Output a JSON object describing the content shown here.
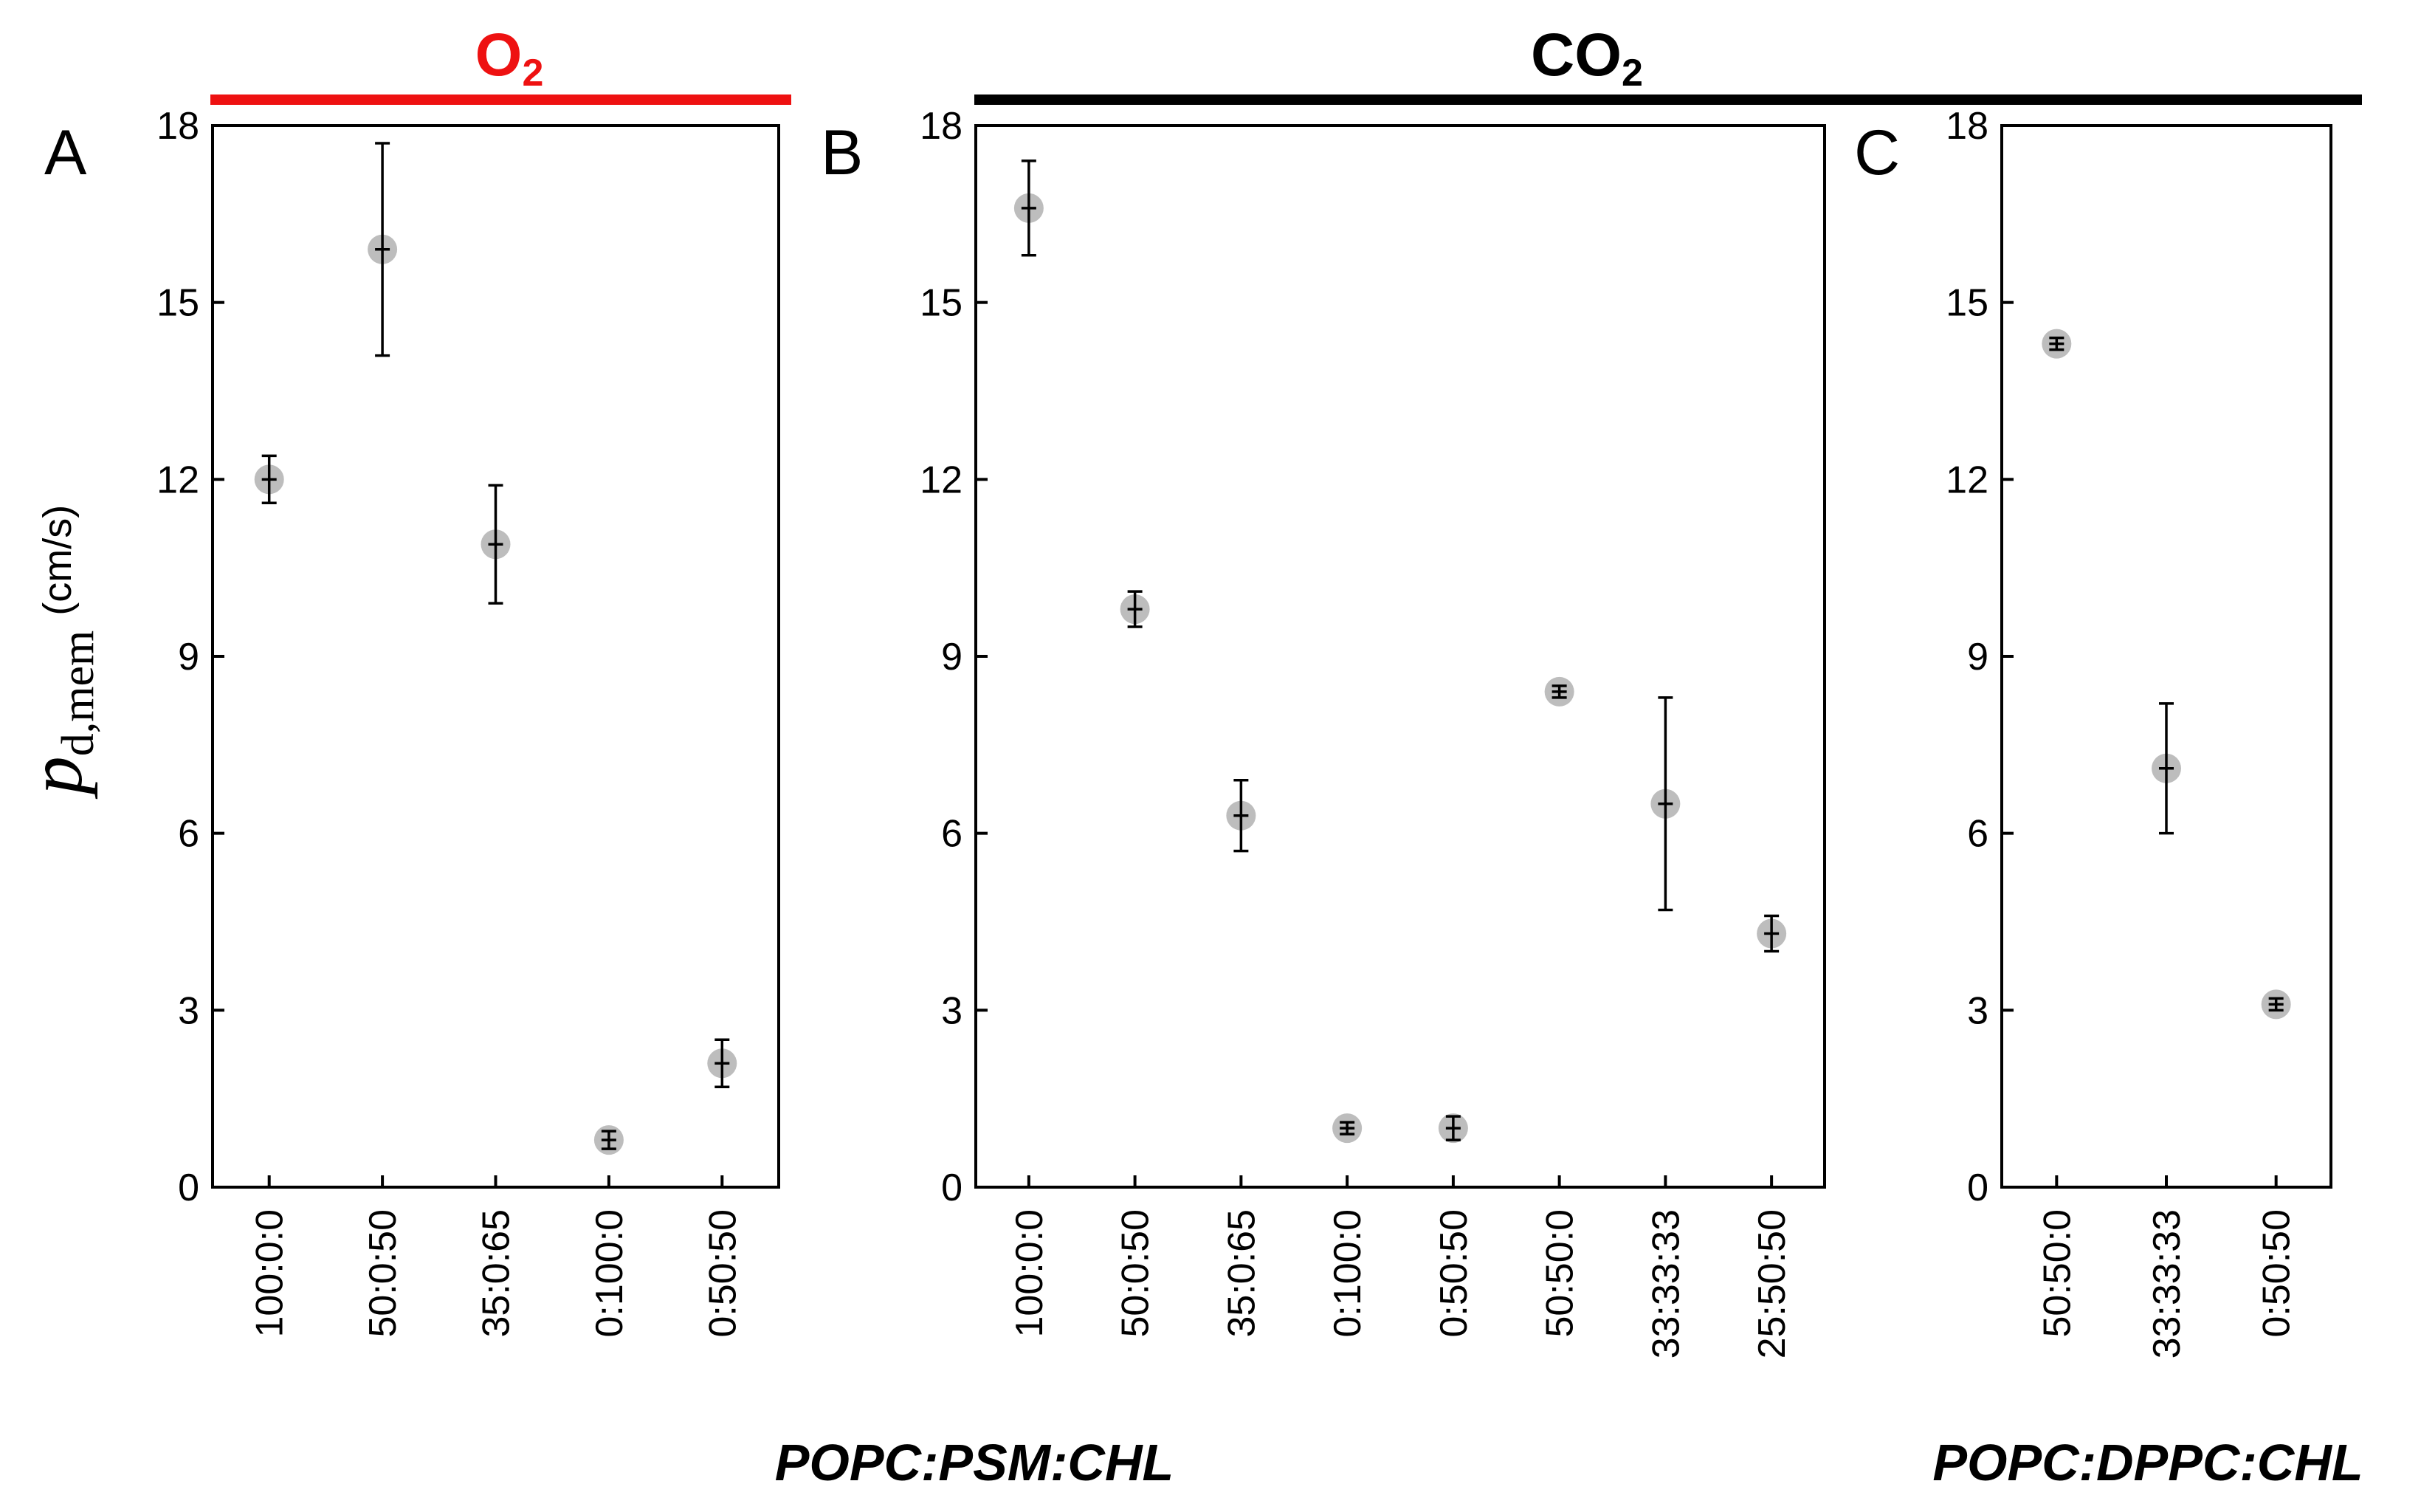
{
  "colors": {
    "o2": "#ee1111",
    "co2": "#000000",
    "marker": "#bdbdbd"
  },
  "header": {
    "o2": {
      "main": "O",
      "sub": "2"
    },
    "co2": {
      "main": "CO",
      "sub": "2"
    }
  },
  "ylabel": {
    "main": "p",
    "sub": "d,mem",
    "unit": "(cm/s)"
  },
  "group_labels": {
    "psm": "POPC:PSM:CHL",
    "dppc": "POPC:DPPC:CHL"
  },
  "chart_data": [
    {
      "type": "scatter",
      "panel": "A",
      "gas": "O2",
      "group": "POPC:PSM:CHL",
      "categories": [
        "100:0:0",
        "50:0:50",
        "35:0:65",
        "0:100:0",
        "0:50:50"
      ],
      "values": [
        12.0,
        15.9,
        10.9,
        0.8,
        2.1
      ],
      "errors": [
        0.4,
        1.8,
        1.0,
        0.15,
        0.4
      ],
      "ylim": [
        0,
        18
      ],
      "yticks": [
        "0",
        "3",
        "6",
        "9",
        "12",
        "15",
        "18"
      ],
      "ylabel": "p d,mem (cm/s)"
    },
    {
      "type": "scatter",
      "panel": "B",
      "gas": "CO2",
      "group": "POPC:PSM:CHL",
      "categories": [
        "100:0:0",
        "50:0:50",
        "35:0:65",
        "0:100:0",
        "0:50:50",
        "50:50:0",
        "33:33:33",
        "25:50:50"
      ],
      "values": [
        16.6,
        9.8,
        6.3,
        1.0,
        1.0,
        8.4,
        6.5,
        4.3
      ],
      "errors": [
        0.8,
        0.3,
        0.6,
        0.1,
        0.2,
        0.1,
        1.8,
        0.3
      ],
      "ylim": [
        0,
        18
      ],
      "yticks": [
        "0",
        "3",
        "6",
        "9",
        "12",
        "15",
        "18"
      ]
    },
    {
      "type": "scatter",
      "panel": "C",
      "gas": "CO2",
      "group": "POPC:DPPC:CHL",
      "categories": [
        "50:50:0",
        "33:33:33",
        "0:50:50"
      ],
      "values": [
        14.3,
        7.1,
        3.1
      ],
      "errors": [
        0.1,
        1.1,
        0.1
      ],
      "ylim": [
        0,
        18
      ],
      "yticks": [
        "0",
        "3",
        "6",
        "9",
        "12",
        "15",
        "18"
      ]
    }
  ]
}
